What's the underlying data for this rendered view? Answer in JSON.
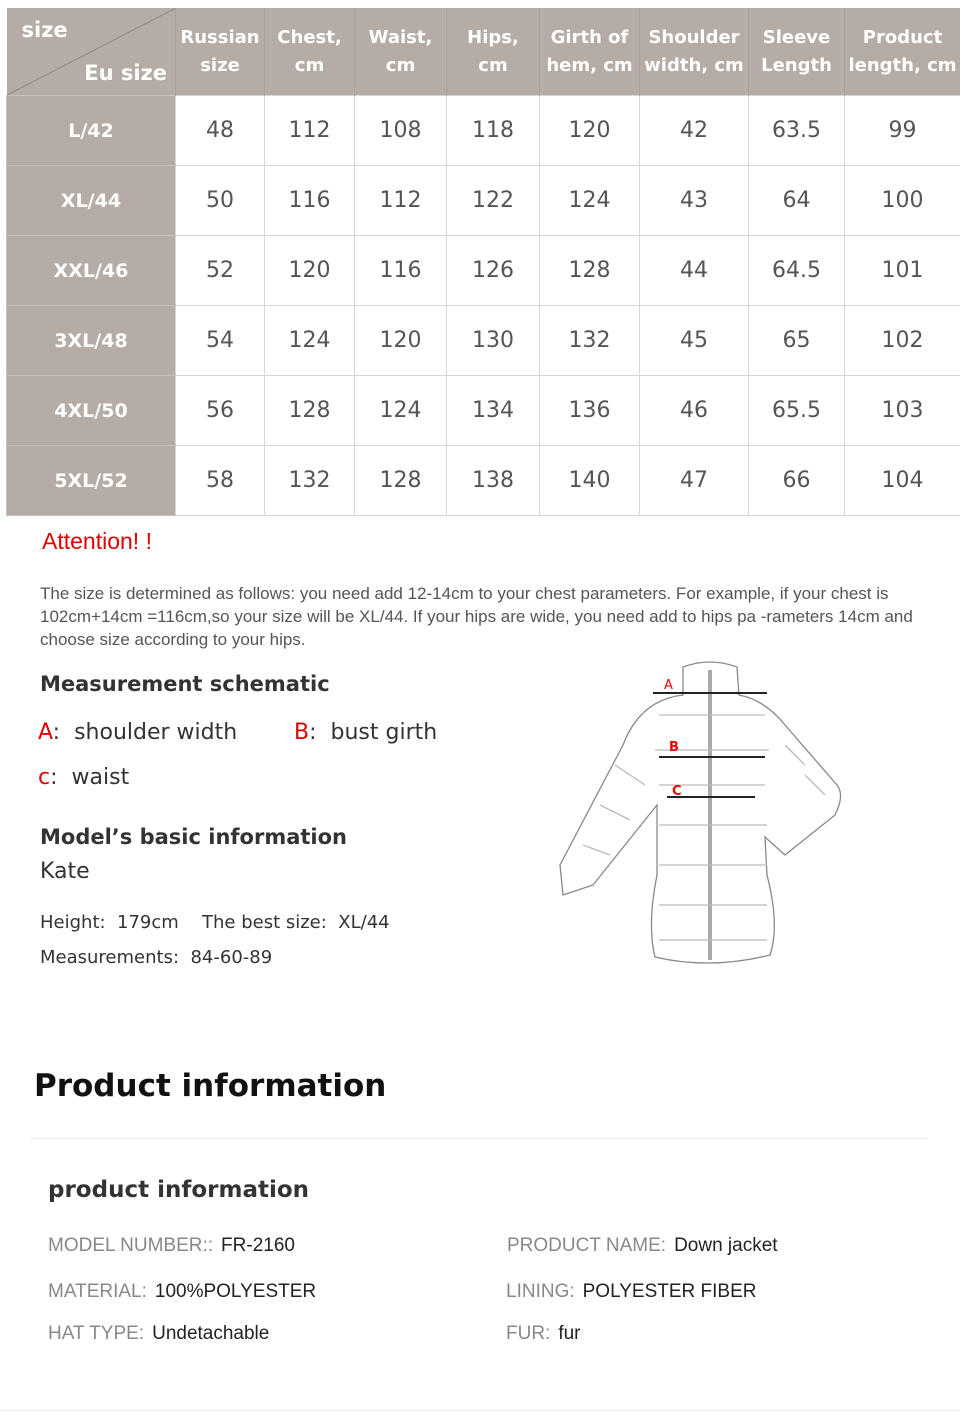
{
  "size_table": {
    "corner_top": "size",
    "corner_bottom": "Eu size",
    "headers": [
      [
        "Russian",
        "size"
      ],
      [
        "Chest,",
        "cm"
      ],
      [
        "Waist,",
        "cm"
      ],
      [
        "Hips,",
        "cm"
      ],
      [
        "Girth of",
        "hem, cm"
      ],
      [
        "Shoulder",
        "width, cm"
      ],
      [
        "Sleeve",
        "Length"
      ],
      [
        "Product",
        "length, cm"
      ]
    ],
    "rows": [
      {
        "size": "L/42",
        "values": [
          "48",
          "112",
          "108",
          "118",
          "120",
          "42",
          "63.5",
          "99"
        ]
      },
      {
        "size": "XL/44",
        "values": [
          "50",
          "116",
          "112",
          "122",
          "124",
          "43",
          "64",
          "100"
        ]
      },
      {
        "size": "XXL/46",
        "values": [
          "52",
          "120",
          "116",
          "126",
          "128",
          "44",
          "64.5",
          "101"
        ]
      },
      {
        "size": "3XL/48",
        "values": [
          "54",
          "124",
          "120",
          "130",
          "132",
          "45",
          "65",
          "102"
        ]
      },
      {
        "size": "4XL/50",
        "values": [
          "56",
          "128",
          "124",
          "134",
          "136",
          "46",
          "65.5",
          "103"
        ]
      },
      {
        "size": "5XL/52",
        "values": [
          "58",
          "132",
          "128",
          "138",
          "140",
          "47",
          "66",
          "104"
        ]
      }
    ]
  },
  "attention": {
    "title": "Attention! !",
    "text": "The size is determined as follows: you need add 12-14cm to your chest parameters. For example, if your chest is 102cm+14cm =116cm,so your size will be XL/44. If your hips are wide, you need add to hips pa -rameters 14cm and choose size according to your hips."
  },
  "schematic": {
    "title": "Measurement schematic",
    "items": [
      {
        "key": "A",
        "label": "shoulder width"
      },
      {
        "key": "B",
        "label": "bust girth"
      },
      {
        "key": "c",
        "label": "waist"
      }
    ],
    "diagram_labels": [
      "A",
      "B",
      "C"
    ]
  },
  "model": {
    "title": "Model’s basic information",
    "name": "Kate",
    "height_label": "Height:",
    "height": "179cm",
    "best_label": "The best size:",
    "best": "XL/44",
    "meas_label": "Measurements:",
    "meas": "84-60-89"
  },
  "product": {
    "heading": "Product information",
    "subheading": "product information",
    "fields": [
      {
        "k": "MODEL NUMBER::",
        "v": "FR-2160"
      },
      {
        "k": "PRODUCT NAME:",
        "v": "Down jacket"
      },
      {
        "k": "MATERIAL:",
        "v": "100%POLYESTER"
      },
      {
        "k": "LINING:",
        "v": "POLYESTER FIBER"
      },
      {
        "k": "HAT TYPE:",
        "v": "Undetachable"
      },
      {
        "k": "FUR:",
        "v": "fur"
      }
    ]
  },
  "colors": {
    "header_bg": "#b5aca6",
    "accent_red": "#e00000"
  }
}
